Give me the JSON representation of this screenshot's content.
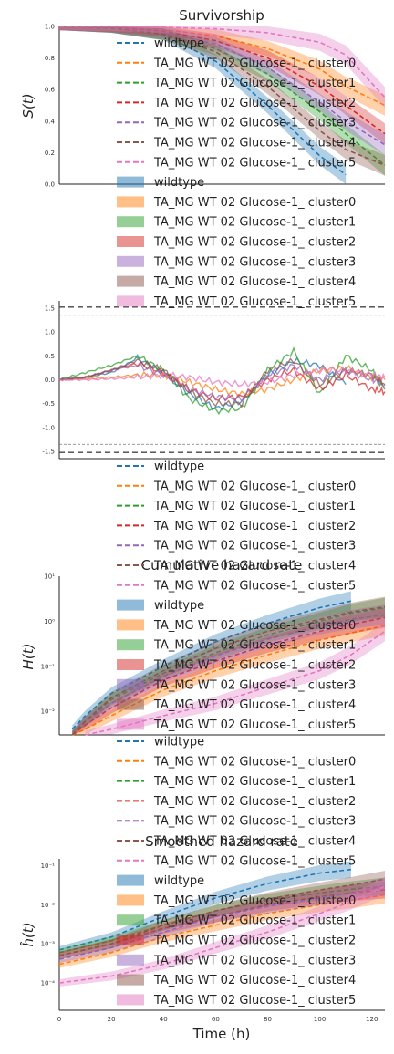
{
  "figure": {
    "xlabel": "Time (h)"
  },
  "legend_entries": {
    "lines": [
      "wildtype",
      "TA_MG WT 02 Glucose-1_ cluster0",
      "TA_MG WT 02 Glucose-1_ cluster1",
      "TA_MG WT 02 Glucose-1_ cluster2",
      "TA_MG WT 02 Glucose-1_ cluster3",
      "TA_MG WT 02 Glucose-1_ cluster4",
      "TA_MG WT 02 Glucose-1_ cluster5"
    ],
    "colors": [
      "#1f77b4",
      "#ff7f0e",
      "#2ca02c",
      "#d62728",
      "#9467bd",
      "#8c564b",
      "#e377c2"
    ]
  },
  "chart_data": [
    {
      "type": "line",
      "title": "Survivorship",
      "ylabel": "S(t)",
      "xlim": [
        0,
        125
      ],
      "ylim": [
        0,
        1
      ],
      "yticks": [
        "0.0",
        "0.2",
        "0.4",
        "0.6",
        "0.8",
        "1.0"
      ],
      "x": [
        0,
        20,
        40,
        60,
        80,
        100,
        110,
        125
      ],
      "series": [
        {
          "name": "wildtype",
          "values": [
            1.0,
            0.99,
            0.95,
            0.78,
            0.5,
            0.18,
            0.06,
            null
          ]
        },
        {
          "name": "TA_MG WT 02 Glucose-1_ cluster0",
          "values": [
            1.0,
            0.995,
            0.98,
            0.94,
            0.86,
            0.73,
            0.62,
            0.5
          ]
        },
        {
          "name": "TA_MG WT 02 Glucose-1_ cluster1",
          "values": [
            1.0,
            0.99,
            0.95,
            0.86,
            0.7,
            0.46,
            0.32,
            0.12
          ]
        },
        {
          "name": "TA_MG WT 02 Glucose-1_ cluster2",
          "values": [
            1.0,
            0.995,
            0.97,
            0.91,
            0.8,
            0.62,
            0.5,
            0.32
          ]
        },
        {
          "name": "TA_MG WT 02 Glucose-1_ cluster3",
          "values": [
            1.0,
            0.99,
            0.96,
            0.89,
            0.74,
            0.52,
            0.4,
            0.25
          ]
        },
        {
          "name": "TA_MG WT 02 Glucose-1_ cluster4",
          "values": [
            1.0,
            0.99,
            0.95,
            0.84,
            0.62,
            0.34,
            0.22,
            0.12
          ]
        },
        {
          "name": "TA_MG WT 02 Glucose-1_ cluster5",
          "values": [
            1.0,
            1.0,
            0.995,
            0.985,
            0.96,
            0.9,
            0.82,
            0.55
          ]
        }
      ]
    },
    {
      "type": "line",
      "title": "",
      "ylabel": "",
      "xlim": [
        0,
        125
      ],
      "ylim": [
        -1.65,
        1.65
      ],
      "yticks": [
        "-1.5",
        "-1.0",
        "-0.5",
        "0.0",
        "0.5",
        "1.0",
        "1.5"
      ],
      "reference_lines": [
        1.52,
        1.35,
        -1.35,
        -1.52
      ],
      "x": [
        0,
        10,
        20,
        30,
        40,
        50,
        60,
        70,
        80,
        90,
        100,
        110,
        120,
        125
      ],
      "series": [
        {
          "name": "wildtype",
          "values": [
            0.0,
            0.05,
            0.15,
            0.45,
            0.15,
            -0.3,
            -0.6,
            -0.45,
            0.1,
            0.4,
            0.3,
            -0.1,
            null,
            null
          ]
        },
        {
          "name": "TA_MG WT 02 Glucose-1_ cluster0",
          "values": [
            0.0,
            0.02,
            0.05,
            0.1,
            0.1,
            -0.05,
            -0.2,
            -0.3,
            -0.2,
            0.0,
            0.2,
            0.25,
            0.05,
            0.0
          ]
        },
        {
          "name": "TA_MG WT 02 Glucose-1_ cluster1",
          "values": [
            0.0,
            0.15,
            0.3,
            0.5,
            0.2,
            -0.4,
            -0.65,
            -0.6,
            0.2,
            0.6,
            -0.3,
            0.5,
            0.2,
            -0.2
          ]
        },
        {
          "name": "TA_MG WT 02 Glucose-1_ cluster2",
          "values": [
            0.0,
            0.05,
            0.2,
            0.35,
            0.15,
            -0.2,
            -0.4,
            -0.35,
            0.0,
            0.2,
            -0.2,
            0.1,
            -0.2,
            -0.25
          ]
        },
        {
          "name": "TA_MG WT 02 Glucose-1_ cluster3",
          "values": [
            0.0,
            0.05,
            0.2,
            0.3,
            0.1,
            -0.2,
            -0.35,
            -0.4,
            0.1,
            0.3,
            0.0,
            0.2,
            0.0,
            -0.1
          ]
        },
        {
          "name": "TA_MG WT 02 Glucose-1_ cluster4",
          "values": [
            0.0,
            0.05,
            0.2,
            0.4,
            0.2,
            -0.25,
            -0.5,
            -0.5,
            0.2,
            0.4,
            -0.1,
            0.2,
            0.1,
            -0.1
          ]
        },
        {
          "name": "TA_MG WT 02 Glucose-1_ cluster5",
          "values": [
            0.0,
            0.0,
            0.02,
            0.05,
            0.1,
            0.05,
            -0.05,
            -0.1,
            -0.05,
            0.1,
            0.2,
            0.2,
            0.1,
            0.05
          ]
        }
      ]
    },
    {
      "type": "line",
      "title": "Cumulative hazard rate",
      "ylabel": "H(t)",
      "yscale": "log",
      "xlim": [
        0,
        125
      ],
      "ylim": [
        0.003,
        10
      ],
      "yticks": [
        "10⁻²",
        "10⁻¹",
        "10⁰",
        "10¹"
      ],
      "x": [
        5,
        10,
        20,
        40,
        60,
        80,
        100,
        112,
        125
      ],
      "series": [
        {
          "name": "wildtype",
          "values": [
            0.004,
            0.008,
            0.025,
            0.1,
            0.35,
            0.9,
            2.0,
            2.8,
            null
          ]
        },
        {
          "name": "TA_MG WT 02 Glucose-1_ cluster0",
          "values": [
            0.003,
            0.004,
            0.008,
            0.03,
            0.08,
            0.18,
            0.38,
            0.55,
            0.8
          ]
        },
        {
          "name": "TA_MG WT 02 Glucose-1_ cluster1",
          "values": [
            0.003,
            0.006,
            0.018,
            0.07,
            0.2,
            0.5,
            1.0,
            1.5,
            2.0
          ]
        },
        {
          "name": "TA_MG WT 02 Glucose-1_ cluster2",
          "values": [
            0.003,
            0.005,
            0.012,
            0.05,
            0.13,
            0.3,
            0.6,
            0.85,
            1.2
          ]
        },
        {
          "name": "TA_MG WT 02 Glucose-1_ cluster3",
          "values": [
            0.003,
            0.006,
            0.015,
            0.06,
            0.17,
            0.4,
            0.8,
            1.1,
            1.4
          ]
        },
        {
          "name": "TA_MG WT 02 Glucose-1_ cluster4",
          "values": [
            0.003,
            0.006,
            0.02,
            0.08,
            0.25,
            0.6,
            1.1,
            1.6,
            2.1
          ]
        },
        {
          "name": "TA_MG WT 02 Glucose-1_ cluster5",
          "values": [
            null,
            0.003,
            0.004,
            0.008,
            0.015,
            0.035,
            0.08,
            0.18,
            0.6
          ]
        }
      ]
    },
    {
      "type": "line",
      "title": "Smoothed hazard rate",
      "ylabel": "ĥ(t)",
      "yscale": "log",
      "xlim": [
        0,
        125
      ],
      "xticks": [
        "0",
        "20",
        "40",
        "60",
        "80",
        "100",
        "120"
      ],
      "ylim": [
        2e-05,
        0.15
      ],
      "yticks": [
        "10⁻⁴",
        "10⁻³",
        "10⁻²",
        "10⁻¹"
      ],
      "x": [
        0,
        20,
        40,
        60,
        80,
        100,
        112,
        125
      ],
      "series": [
        {
          "name": "wildtype",
          "values": [
            0.0007,
            0.0015,
            0.005,
            0.015,
            0.035,
            0.065,
            0.08,
            null
          ]
        },
        {
          "name": "TA_MG WT 02 Glucose-1_ cluster0",
          "values": [
            0.0003,
            0.0006,
            0.0015,
            0.003,
            0.006,
            0.01,
            0.013,
            0.018
          ]
        },
        {
          "name": "TA_MG WT 02 Glucose-1_ cluster1",
          "values": [
            0.0006,
            0.0012,
            0.003,
            0.007,
            0.013,
            0.02,
            0.025,
            0.03
          ]
        },
        {
          "name": "TA_MG WT 02 Glucose-1_ cluster2",
          "values": [
            0.0005,
            0.001,
            0.0025,
            0.005,
            0.01,
            0.016,
            0.02,
            0.024
          ]
        },
        {
          "name": "TA_MG WT 02 Glucose-1_ cluster3",
          "values": [
            0.0004,
            0.0008,
            0.002,
            0.005,
            0.009,
            0.015,
            0.02,
            0.03
          ]
        },
        {
          "name": "TA_MG WT 02 Glucose-1_ cluster4",
          "values": [
            0.0005,
            0.001,
            0.003,
            0.007,
            0.014,
            0.024,
            0.032,
            0.045
          ]
        },
        {
          "name": "TA_MG WT 02 Glucose-1_ cluster5",
          "values": [
            0.0001,
            0.00015,
            0.0003,
            0.0008,
            0.002,
            0.006,
            0.012,
            0.03
          ]
        }
      ]
    }
  ]
}
